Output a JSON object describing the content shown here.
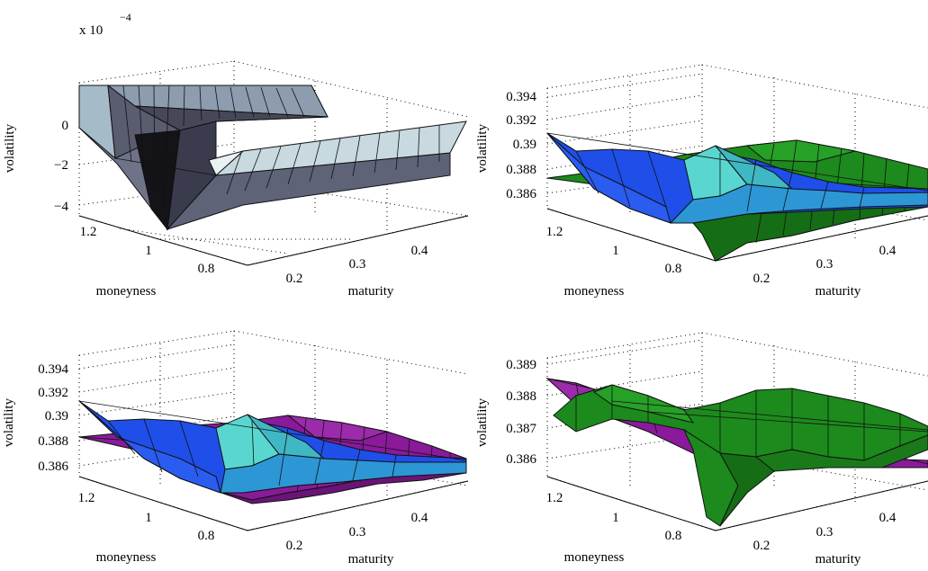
{
  "chart_data": [
    {
      "type": "surface",
      "exponent_label": {
        "base": "x 10",
        "power": "−4"
      },
      "xlabel": "maturity",
      "ylabel": "moneyness",
      "zlabel": "volatility",
      "x_ticks": [
        "0.2",
        "0.3",
        "0.4"
      ],
      "y_ticks": [
        "1.2",
        "1",
        "0.8"
      ],
      "z_ticks": [
        "0",
        "−2",
        "−4"
      ],
      "zlim": [
        -4.8,
        2.2
      ],
      "colormap": "bone",
      "grid": true,
      "surfaces": [
        {
          "name": "",
          "shape": "trough",
          "values_x1e-4": [
            [
              1.6,
              1.3,
              0.5,
              -1.0,
              -2.8,
              -4.2,
              -4.6,
              -4.4,
              -3.6,
              -2.6
            ],
            [
              1.7,
              1.6,
              1.2,
              0.2,
              -1.4,
              -3.2,
              -4.4,
              -4.6,
              -4.2,
              -3.4
            ]
          ]
        }
      ]
    },
    {
      "type": "surface",
      "xlabel": "maturity",
      "ylabel": "moneyness",
      "zlabel": "volatility",
      "x_ticks": [
        "0.2",
        "0.3",
        "0.4"
      ],
      "y_ticks": [
        "1.2",
        "1",
        "0.8"
      ],
      "z_ticks": [
        "0.394",
        "0.392",
        "0.39",
        "0.388",
        "0.386"
      ],
      "zlim": [
        0.385,
        0.395
      ],
      "colors": [
        "#1f4fe8",
        "#1a8a1a"
      ],
      "grid": true
    },
    {
      "type": "surface",
      "xlabel": "maturity",
      "ylabel": "moneyness",
      "zlabel": "volatility",
      "x_ticks": [
        "0.2",
        "0.3",
        "0.4"
      ],
      "y_ticks": [
        "1.2",
        "1",
        "0.8"
      ],
      "z_ticks": [
        "0.394",
        "0.392",
        "0.39",
        "0.388",
        "0.386"
      ],
      "zlim": [
        0.385,
        0.395
      ],
      "colors": [
        "#1f4fe8",
        "#8a1a9a"
      ],
      "grid": true
    },
    {
      "type": "surface",
      "xlabel": "maturity",
      "ylabel": "moneyness",
      "zlabel": "volatility",
      "x_ticks": [
        "0.2",
        "0.3",
        "0.4"
      ],
      "y_ticks": [
        "1.2",
        "1",
        "0.8"
      ],
      "z_ticks": [
        "0.389",
        "0.388",
        "0.387",
        "0.386"
      ],
      "zlim": [
        0.3855,
        0.3892
      ],
      "colors": [
        "#1a8a1a",
        "#8a1a9a"
      ],
      "grid": true
    }
  ]
}
